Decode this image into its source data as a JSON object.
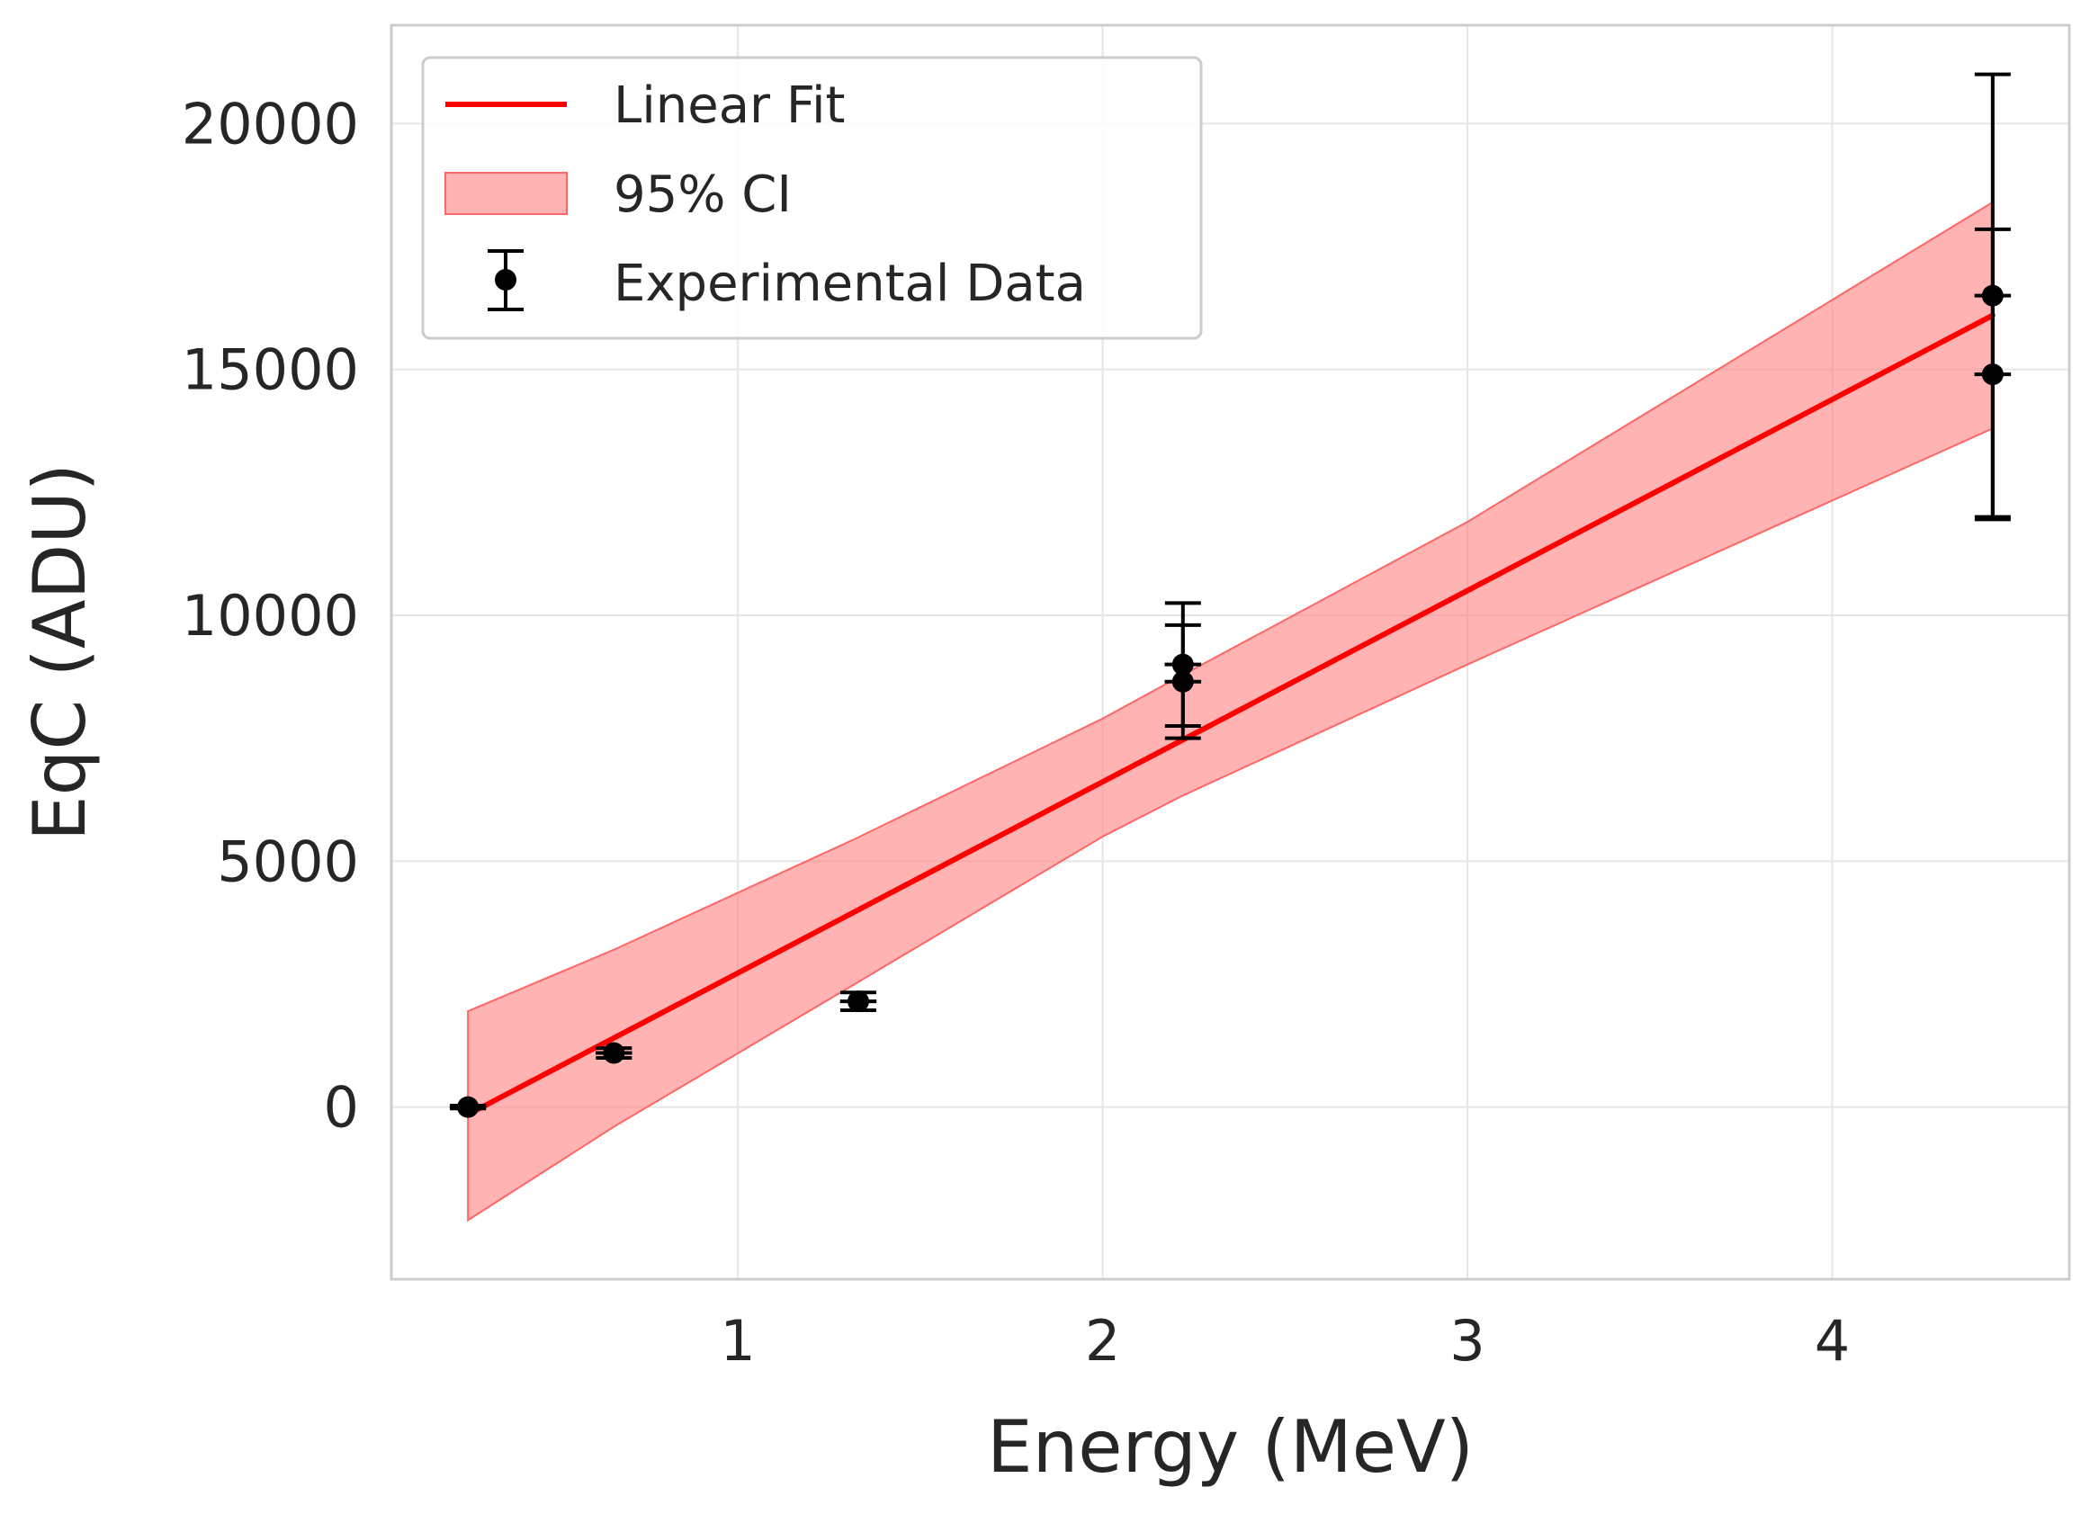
{
  "chart_data": {
    "type": "scatter",
    "title": "",
    "xlabel": "Energy (MeV)",
    "ylabel": "EqC (ADU)",
    "xlim": [
      0.05,
      4.65
    ],
    "ylim": [
      -3500,
      22000
    ],
    "xticks": [
      1,
      2,
      3,
      4
    ],
    "xtick_labels": [
      "1",
      "2",
      "3",
      "4"
    ],
    "yticks": [
      0,
      5000,
      10000,
      15000,
      20000
    ],
    "ytick_labels": [
      "0",
      "5000",
      "10000",
      "15000",
      "20000"
    ],
    "grid": true,
    "legend_position": "top-left",
    "series": [
      {
        "name": "Linear Fit",
        "kind": "line",
        "color": "#ff0000",
        "x": [
          0.26,
          4.44
        ],
        "y": [
          -150,
          16100
        ]
      },
      {
        "name": "95% CI",
        "kind": "band",
        "color": "#ff8080",
        "x": [
          0.26,
          0.66,
          1.32,
          2.0,
          2.21,
          3.0,
          4.44
        ],
        "upper": [
          1950,
          3200,
          5450,
          7900,
          8750,
          11900,
          18400
        ],
        "lower": [
          -2300,
          -400,
          2500,
          5500,
          6300,
          9000,
          13800
        ]
      },
      {
        "name": "Experimental Data",
        "kind": "errorbar",
        "color": "#000000",
        "points": [
          {
            "x": 0.26,
            "y": 0,
            "yerr": 30,
            "xerr": 0.05
          },
          {
            "x": 0.66,
            "y": 1100,
            "yerr": 100,
            "xerr": 0.05
          },
          {
            "x": 1.33,
            "y": 2150,
            "yerr": 180,
            "xerr": 0.05
          },
          {
            "x": 2.22,
            "y": 9000,
            "yerr": 1250,
            "xerr": 0.05
          },
          {
            "x": 2.22,
            "y": 8650,
            "yerr": 1150,
            "xerr": 0.05
          },
          {
            "x": 4.44,
            "y": 16500,
            "yerr": 4500,
            "xerr": 0.05
          },
          {
            "x": 4.44,
            "y": 14900,
            "yerr": 2950,
            "xerr": 0.05
          }
        ]
      }
    ]
  },
  "colors": {
    "background": "#ffffff",
    "grid": "#e6e6e6",
    "frame": "#cccccc",
    "text": "#262626"
  }
}
